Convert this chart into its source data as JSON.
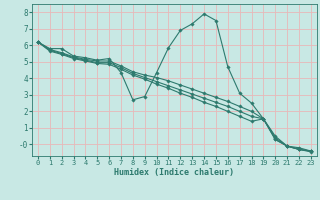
{
  "xlabel": "Humidex (Indice chaleur)",
  "bg_color": "#c8e8e4",
  "grid_color": "#f0f0f0",
  "line_color": "#2d7a6e",
  "marker_color": "#2d7a6e",
  "xlim": [
    -0.5,
    23.5
  ],
  "ylim": [
    -0.7,
    8.5
  ],
  "xticks": [
    0,
    1,
    2,
    3,
    4,
    5,
    6,
    7,
    8,
    9,
    10,
    11,
    12,
    13,
    14,
    15,
    16,
    17,
    18,
    19,
    20,
    21,
    22,
    23
  ],
  "yticks": [
    0,
    1,
    2,
    3,
    4,
    5,
    6,
    7,
    8
  ],
  "ytick_labels": [
    "-0",
    "1",
    "2",
    "3",
    "4",
    "5",
    "6",
    "7",
    "8"
  ],
  "series": [
    {
      "x": [
        0,
        1,
        2,
        3,
        4,
        5,
        6,
        7,
        8,
        9,
        10,
        11,
        12,
        13,
        14,
        15,
        16,
        17,
        18,
        19,
        20,
        21,
        22,
        23
      ],
      "y": [
        6.2,
        5.8,
        5.8,
        5.35,
        5.25,
        5.1,
        5.2,
        4.35,
        2.7,
        2.9,
        4.35,
        5.85,
        6.9,
        7.3,
        7.9,
        7.5,
        4.7,
        3.1,
        2.5,
        1.55,
        0.3,
        -0.1,
        -0.2,
        -0.4
      ]
    },
    {
      "x": [
        0,
        1,
        2,
        3,
        4,
        5,
        6,
        7,
        8,
        9,
        10,
        11,
        12,
        13,
        14,
        15,
        16,
        17,
        18,
        19,
        20,
        21,
        22,
        23
      ],
      "y": [
        6.2,
        5.75,
        5.55,
        5.3,
        5.15,
        5.05,
        5.05,
        4.75,
        4.4,
        4.2,
        4.05,
        3.85,
        3.6,
        3.35,
        3.1,
        2.85,
        2.6,
        2.3,
        2.0,
        1.55,
        0.5,
        -0.1,
        -0.3,
        -0.4
      ]
    },
    {
      "x": [
        0,
        1,
        2,
        3,
        4,
        5,
        6,
        7,
        8,
        9,
        10,
        11,
        12,
        13,
        14,
        15,
        16,
        17,
        18,
        19,
        20,
        21,
        22,
        23
      ],
      "y": [
        6.2,
        5.7,
        5.5,
        5.25,
        5.1,
        4.95,
        4.95,
        4.65,
        4.3,
        4.05,
        3.8,
        3.55,
        3.3,
        3.05,
        2.8,
        2.55,
        2.3,
        2.0,
        1.7,
        1.55,
        0.4,
        -0.1,
        -0.3,
        -0.4
      ]
    },
    {
      "x": [
        0,
        1,
        2,
        3,
        4,
        5,
        6,
        7,
        8,
        9,
        10,
        11,
        12,
        13,
        14,
        15,
        16,
        17,
        18,
        19,
        20,
        21,
        22,
        23
      ],
      "y": [
        6.2,
        5.65,
        5.45,
        5.2,
        5.05,
        4.9,
        4.85,
        4.55,
        4.2,
        3.95,
        3.65,
        3.4,
        3.1,
        2.85,
        2.55,
        2.3,
        2.0,
        1.7,
        1.4,
        1.55,
        0.3,
        -0.1,
        -0.3,
        -0.45
      ]
    }
  ]
}
